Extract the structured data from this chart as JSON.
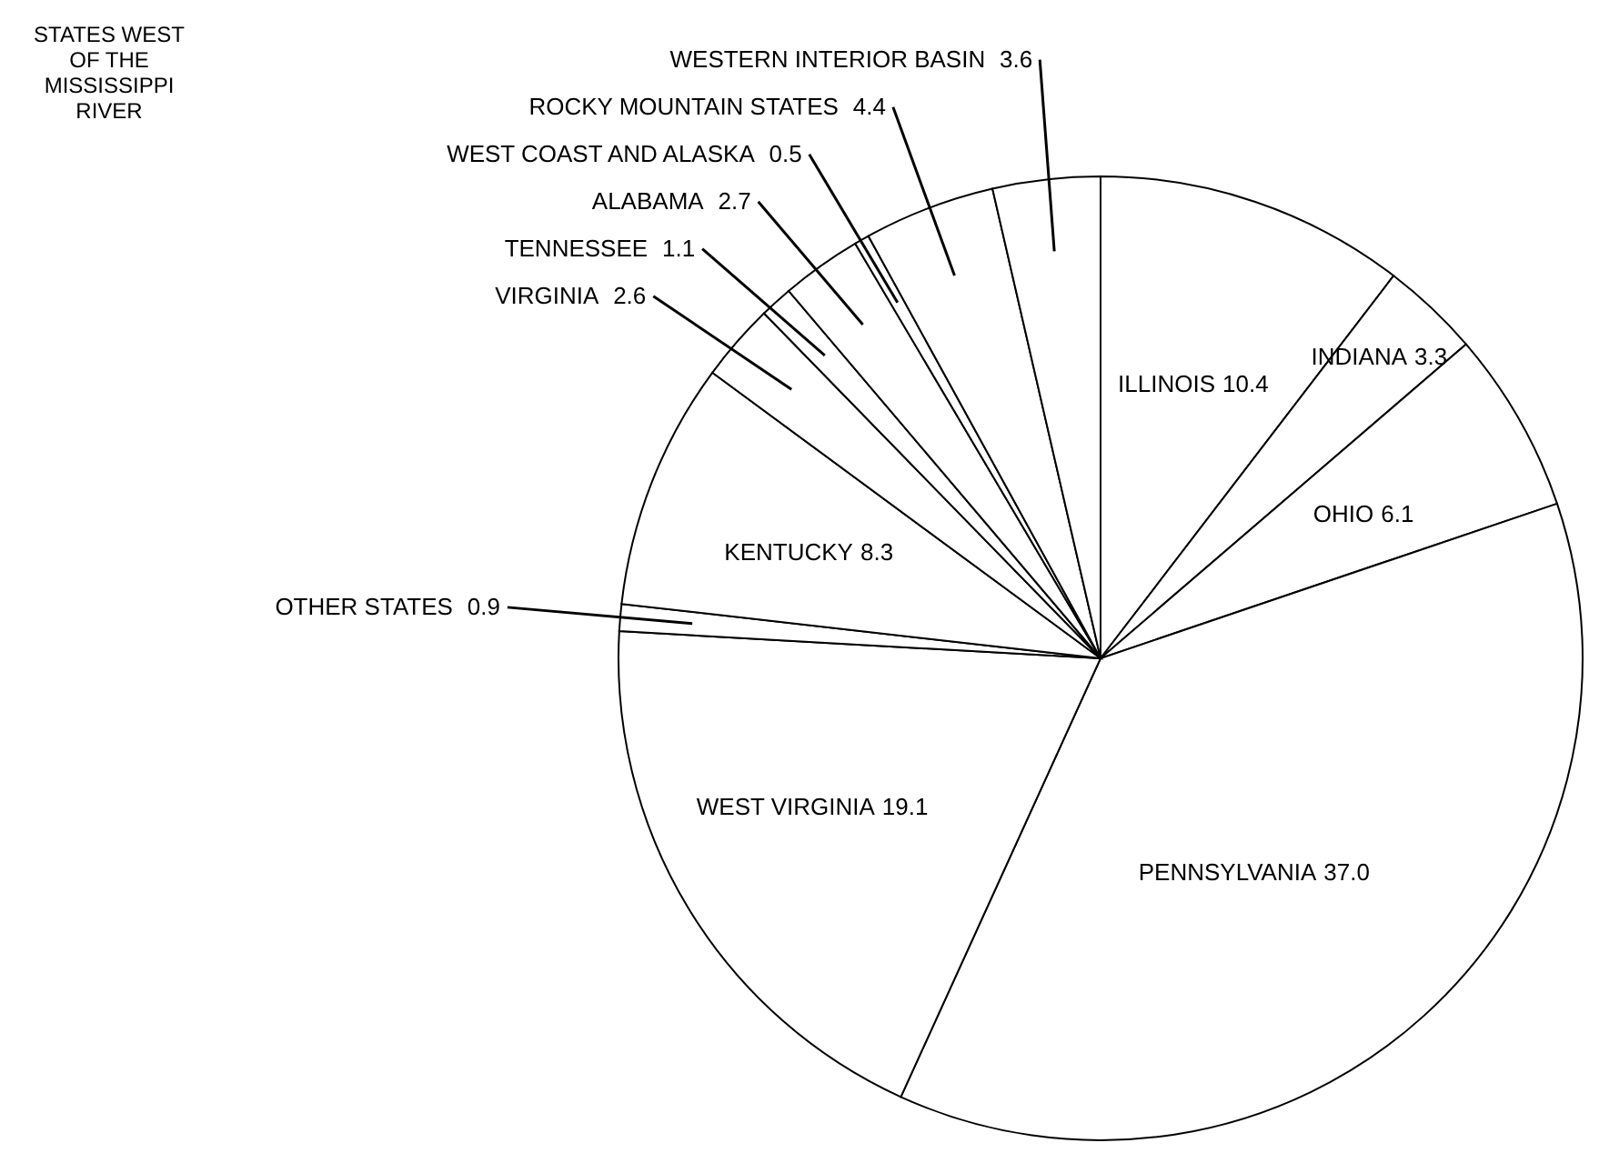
{
  "chart_data": {
    "type": "pie",
    "categories": [
      "ILLINOIS",
      "INDIANA",
      "OHIO",
      "PENNSYLVANIA",
      "WEST VIRGINIA",
      "OTHER STATES",
      "KENTUCKY",
      "VIRGINIA",
      "TENNESSEE",
      "ALABAMA",
      "WEST COAST AND ALASKA",
      "ROCKY MOUNTAIN STATES",
      "WESTERN INTERIOR BASIN"
    ],
    "values": [
      10.4,
      3.3,
      6.1,
      37.0,
      19.1,
      0.9,
      8.3,
      2.6,
      1.1,
      2.7,
      0.5,
      4.4,
      3.6
    ],
    "colors": [
      "#ffffff",
      "#ffffff",
      "#ffffff",
      "#ffffff",
      "#ffffff",
      "#ffffff",
      "#ffffff",
      "#ffffff",
      "#ffffff",
      "#ffffff",
      "#ffffff",
      "#ffffff",
      "#ffffff"
    ],
    "value_labels": [
      "10.4",
      "3.3",
      "6.1",
      "37.0",
      "19.1",
      "0.9",
      "8.3",
      "2.6",
      "1.1",
      "2.7",
      "0.5",
      "4.4",
      "3.6"
    ],
    "annotations": [
      "STATES WEST\nOF THE\nMISSISSIPPI\nRIVER"
    ]
  }
}
